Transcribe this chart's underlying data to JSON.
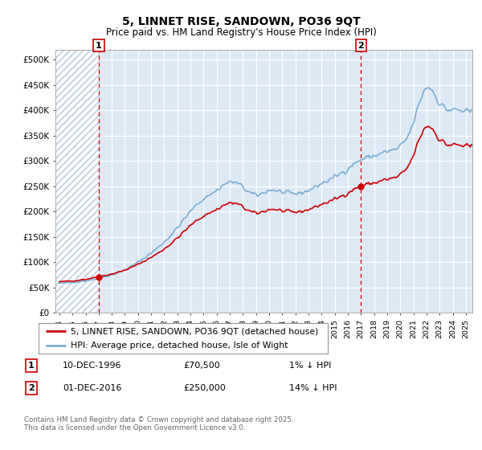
{
  "title": "5, LINNET RISE, SANDOWN, PO36 9QT",
  "subtitle": "Price paid vs. HM Land Registry's House Price Index (HPI)",
  "hpi_color": "#7aadd4",
  "price_color": "#cc0000",
  "background_color": "#ffffff",
  "plot_bg_color": "#dce9f5",
  "grid_color": "#ffffff",
  "hatch_color": "#c8d8e8",
  "legend_label_price": "5, LINNET RISE, SANDOWN, PO36 9QT (detached house)",
  "legend_label_hpi": "HPI: Average price, detached house, Isle of Wight",
  "annotation1_date": "10-DEC-1996",
  "annotation1_price": "£70,500",
  "annotation1_hpi": "1% ↓ HPI",
  "annotation2_date": "01-DEC-2016",
  "annotation2_price": "£250,000",
  "annotation2_hpi": "14% ↓ HPI",
  "footer": "Contains HM Land Registry data © Crown copyright and database right 2025.\nThis data is licensed under the Open Government Licence v3.0.",
  "sale1_year": 1997.0,
  "sale1_price": 70500,
  "sale2_year": 2017.0,
  "sale2_price": 250000,
  "xmin": 1993.7,
  "xmax": 2025.5,
  "ylim_max": 520000
}
